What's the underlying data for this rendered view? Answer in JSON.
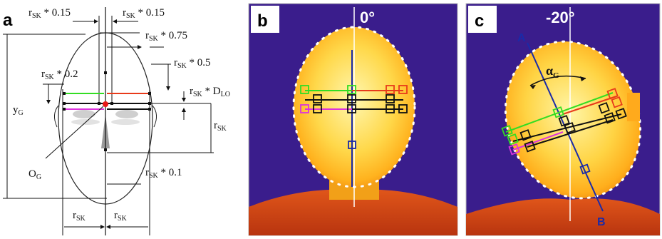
{
  "panel_a": {
    "letter": "a",
    "r": "r",
    "sk": "SK",
    "lo": "LO",
    "g": "G",
    "labels": {
      "f015_left": " * 0.15",
      "f015_right": " * 0.15",
      "f075": " * 0.75",
      "f05": " * 0.5",
      "f02": " * 0.2",
      "fdlo": " * D",
      "y": "y",
      "o": "O",
      "f01": " * 0.1"
    }
  },
  "panel_b": {
    "letter": "b",
    "angle": "0°"
  },
  "panel_c": {
    "letter": "c",
    "angle": "-20°",
    "point_a": "A",
    "point_b": "B",
    "alpha": "α"
  },
  "colors": {
    "green": "#33dd22",
    "red": "#e83a1a",
    "magenta": "#dd33dd",
    "black": "#111111",
    "navy": "#1a2aa8",
    "background_ir": "#3a1d8c"
  }
}
